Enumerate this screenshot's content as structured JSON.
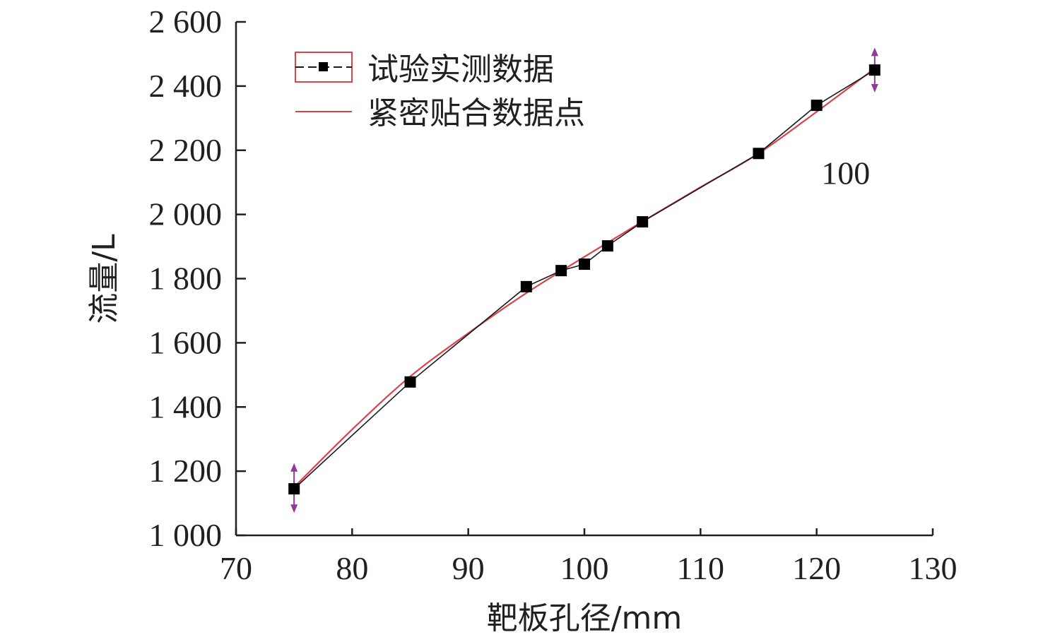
{
  "chart_data": {
    "type": "line",
    "title": "",
    "xlabel": "靶板孔径/mm",
    "ylabel": "流量/L",
    "xlim": [
      70,
      130
    ],
    "ylim": [
      1000,
      2600
    ],
    "xticks": [
      70,
      80,
      90,
      100,
      110,
      120,
      130
    ],
    "yticks": [
      1000,
      1200,
      1400,
      1600,
      1800,
      2000,
      2200,
      2400,
      2600
    ],
    "ytick_labels": [
      "1 000",
      "1 200",
      "1 400",
      "1 600",
      "1 800",
      "2 000",
      "2 200",
      "2 400",
      "2 600"
    ],
    "grid": false,
    "legend_position": "top-left",
    "series": [
      {
        "name": "试验实测数据",
        "style": "line-with-square-markers",
        "color": "#1a1a1a",
        "x": [
          75,
          85,
          95,
          98,
          100,
          102,
          105,
          115,
          120,
          125
        ],
        "y": [
          1145,
          1478,
          1775,
          1825,
          1845,
          1902,
          1977,
          2190,
          2340,
          2450
        ]
      },
      {
        "name": "紧密贴合数据点",
        "style": "smooth-line",
        "color": "#d9434b",
        "x": [
          75,
          80,
          85,
          90,
          95,
          100,
          105,
          110,
          115,
          120,
          125
        ],
        "y": [
          1150,
          1330,
          1495,
          1630,
          1755,
          1868,
          1978,
          2085,
          2190,
          2320,
          2455
        ]
      }
    ],
    "annotations": [
      {
        "text": "100",
        "x": 122.5,
        "y": 2130
      }
    ],
    "markers": [
      {
        "name": "range-arrow-left",
        "x": 75,
        "y_min": 1070,
        "y_max": 1225,
        "color": "#8e3a97"
      },
      {
        "name": "range-arrow-right",
        "x": 125,
        "y_min": 2380,
        "y_max": 2520,
        "color": "#8e3a97"
      }
    ]
  }
}
